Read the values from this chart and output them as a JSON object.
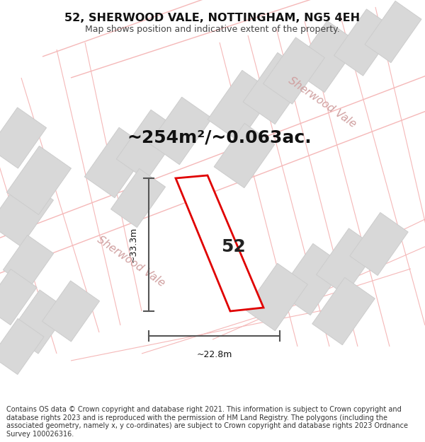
{
  "title_line1": "52, SHERWOOD VALE, NOTTINGHAM, NG5 4EH",
  "title_line2": "Map shows position and indicative extent of the property.",
  "area_text": "~254m²/~0.063ac.",
  "property_number": "52",
  "dim_vertical": "~33.3m",
  "dim_horizontal": "~22.8m",
  "street_label_lower": "Sherwood Vale",
  "street_label_upper": "Sherwood Vale",
  "footer_text": "Contains OS data © Crown copyright and database right 2021. This information is subject to Crown copyright and database rights 2023 and is reproduced with the permission of HM Land Registry. The polygons (including the associated geometry, namely x, y co-ordinates) are subject to Crown copyright and database rights 2023 Ordnance Survey 100026316.",
  "bg_color": "#ffffff",
  "map_bg": "#ffffff",
  "plot_color": "#e00000",
  "plot_fill": "#ffffff",
  "road_line_color": "#f5b8b8",
  "building_color": "#d8d8d8",
  "building_stroke": "#cccccc",
  "dim_line_color": "#555555",
  "street_text_color": "#d0a0a0",
  "title_color": "#111111",
  "footer_color": "#333333",
  "title_fontsize": 11.5,
  "subtitle_fontsize": 9.0,
  "area_fontsize": 18,
  "number_fontsize": 18,
  "dim_fontsize": 9,
  "street_fontsize": 11,
  "footer_fontsize": 7.0
}
